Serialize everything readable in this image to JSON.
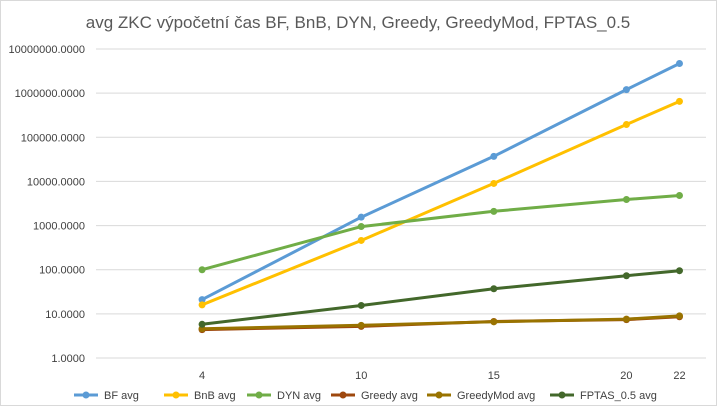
{
  "chart_data": {
    "type": "line",
    "title": "avg ZKC výpočetní čas BF, BnB, DYN, Greedy, GreedyMod, FPTAS_0.5",
    "xlabel": "",
    "ylabel": "",
    "y_scale": "log",
    "ylim": [
      1,
      10000000
    ],
    "grid": true,
    "legend_position": "bottom",
    "x": [
      4,
      10,
      15,
      20,
      22
    ],
    "x_tick_labels": [
      "4",
      "10",
      "15",
      "20",
      "22"
    ],
    "y_tick_labels": [
      "1.0000",
      "10.0000",
      "100.0000",
      "1000.0000",
      "10000.0000",
      "100000.0000",
      "1000000.0000",
      "10000000.0000"
    ],
    "series": [
      {
        "name": "BF avg",
        "color": "#5b9bd5",
        "values": [
          21,
          1550,
          37000,
          1200000,
          4700000
        ]
      },
      {
        "name": "BnB avg",
        "color": "#ffc000",
        "values": [
          16,
          460,
          9000,
          195000,
          650000
        ]
      },
      {
        "name": "DYN avg",
        "color": "#70ad47",
        "values": [
          100,
          950,
          2100,
          3900,
          4800
        ]
      },
      {
        "name": "Greedy avg",
        "color": "#9e480e",
        "values": [
          4.4,
          5.2,
          6.7,
          7.4,
          8.6
        ]
      },
      {
        "name": "GreedyMod avg",
        "color": "#997300",
        "values": [
          4.6,
          5.5,
          6.6,
          7.6,
          9.0
        ]
      },
      {
        "name": "FPTAS_0.5 avg",
        "color": "#43682b",
        "values": [
          5.8,
          15.5,
          37,
          73,
          95
        ]
      }
    ]
  }
}
